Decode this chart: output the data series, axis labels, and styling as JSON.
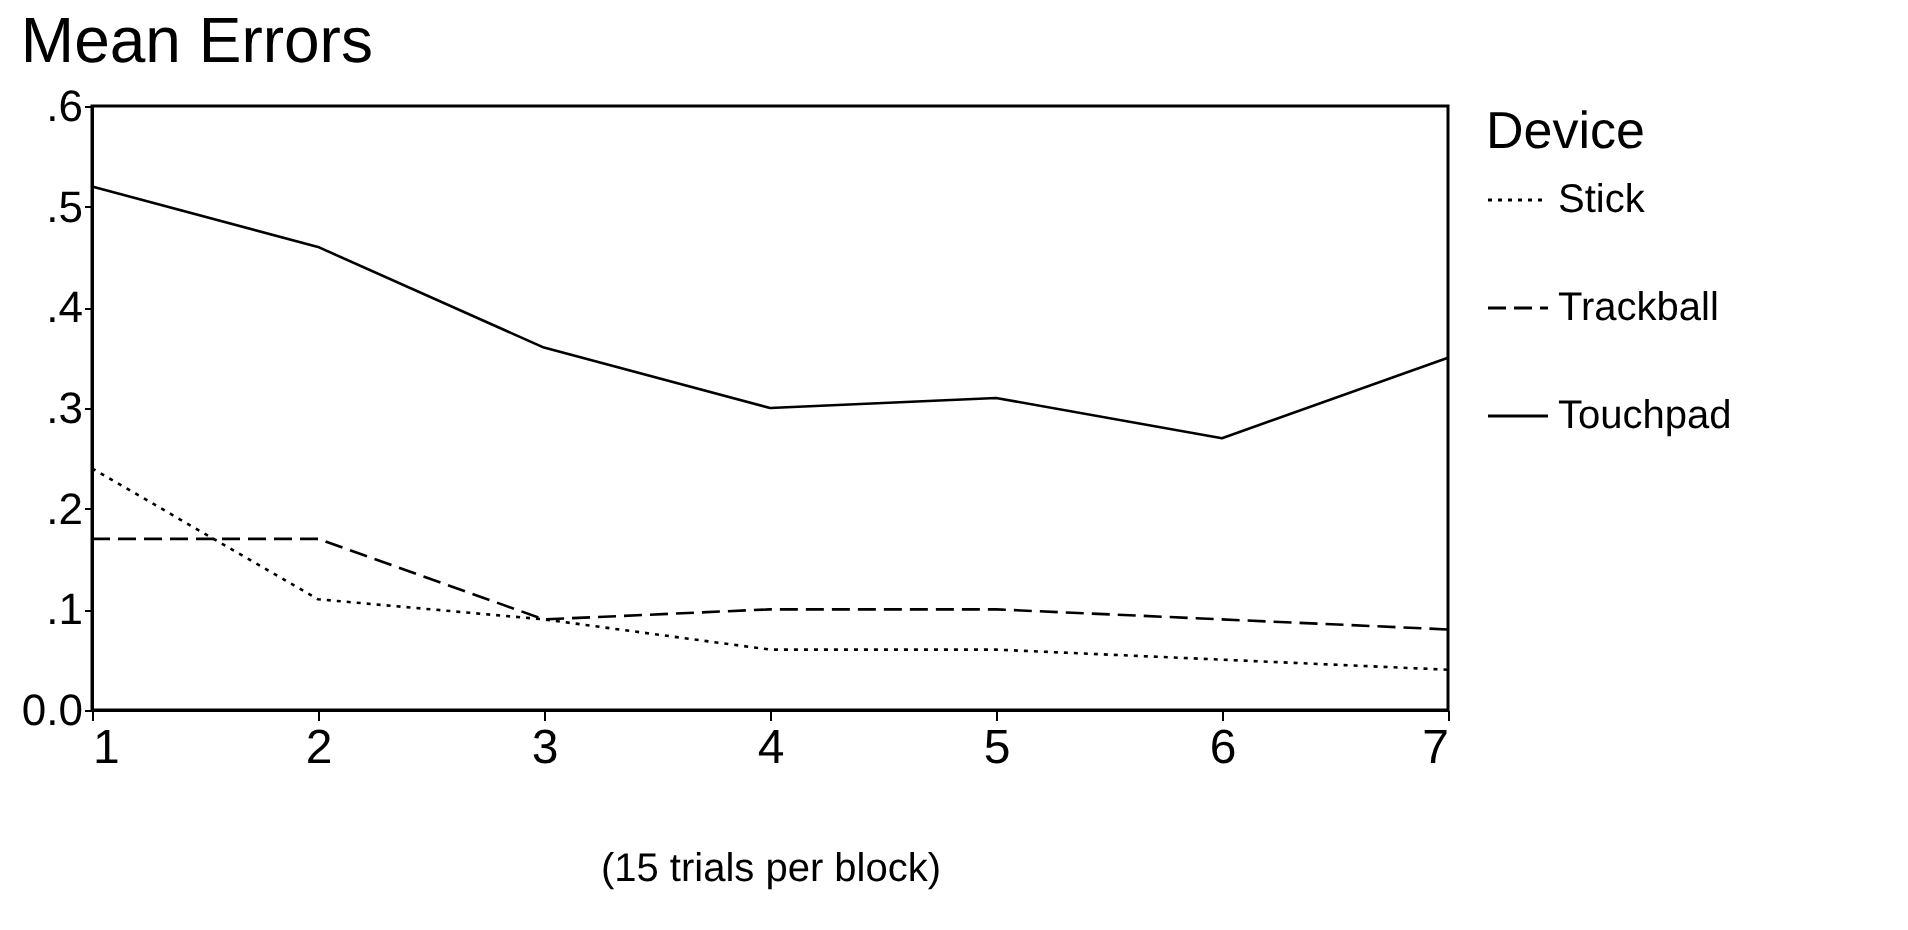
{
  "chart_data": {
    "type": "line",
    "title": "Mean Errors",
    "xlabel": "(15 trials per block)",
    "legend_title": "Device",
    "legend": "right",
    "grid": false,
    "x": [
      1,
      2,
      3,
      4,
      5,
      6,
      7
    ],
    "series": [
      {
        "name": "Stick",
        "color": "#000000",
        "line_style": "dotted",
        "values": [
          0.24,
          0.11,
          0.09,
          0.06,
          0.06,
          0.05,
          0.04
        ]
      },
      {
        "name": "Trackball",
        "color": "#000000",
        "line_style": "dashed",
        "values": [
          0.17,
          0.17,
          0.09,
          0.1,
          0.1,
          0.09,
          0.08
        ]
      },
      {
        "name": "Touchpad",
        "color": "#000000",
        "line_style": "solid",
        "values": [
          0.52,
          0.46,
          0.36,
          0.3,
          0.31,
          0.27,
          0.35
        ]
      }
    ],
    "xlim": [
      1,
      7
    ],
    "xticks": [
      1,
      2,
      3,
      4,
      5,
      6,
      7
    ],
    "ylim": [
      0,
      0.6
    ],
    "yticks": [
      {
        "value": 0,
        "label": "0.0"
      },
      {
        "value": 0.1,
        "label": ".1"
      },
      {
        "value": 0.2,
        "label": ".2"
      },
      {
        "value": 0.3,
        "label": ".3"
      },
      {
        "value": 0.4,
        "label": ".4"
      },
      {
        "value": 0.5,
        "label": ".5"
      },
      {
        "value": 0.6,
        "label": ".6"
      }
    ]
  }
}
